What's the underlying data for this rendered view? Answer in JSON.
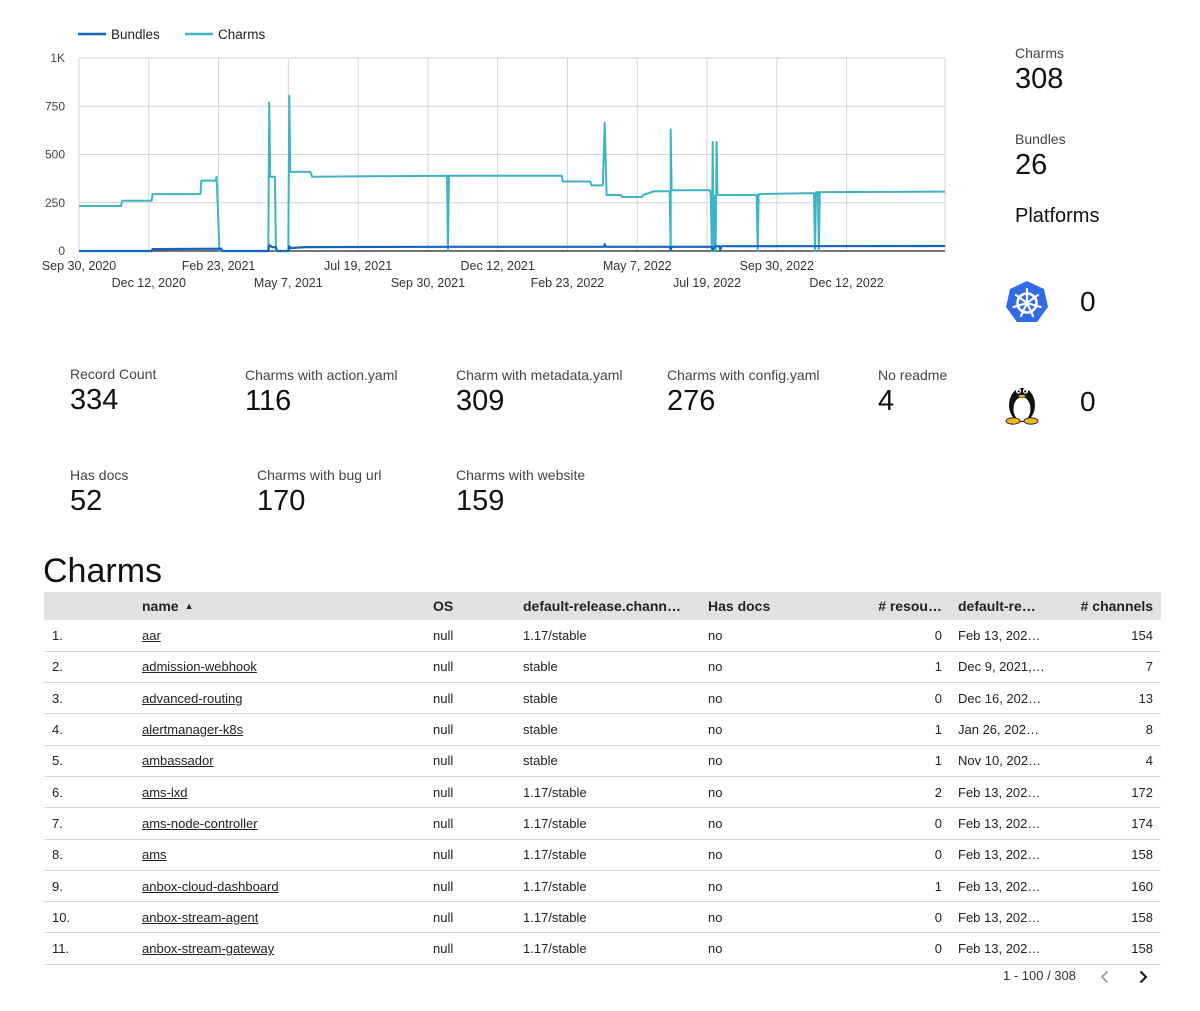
{
  "chart_data": {
    "type": "line",
    "title": "",
    "xlabel": "",
    "ylabel": "",
    "legend_position": "top-left",
    "grid": true,
    "ylim": [
      0,
      1000
    ],
    "xlim": [
      "2020-09-30",
      "2023-03-25"
    ],
    "y_ticks": [
      {
        "value": 0,
        "label": "0"
      },
      {
        "value": 250,
        "label": "250"
      },
      {
        "value": 500,
        "label": "500"
      },
      {
        "value": 750,
        "label": "750"
      },
      {
        "value": 1000,
        "label": "1K"
      }
    ],
    "x_ticks": [
      {
        "date": "2020-09-30",
        "label": "Sep 30, 2020"
      },
      {
        "date": "2020-12-12",
        "label": "Dec 12, 2020"
      },
      {
        "date": "2021-02-23",
        "label": "Feb 23, 2021"
      },
      {
        "date": "2021-05-07",
        "label": "May 7, 2021"
      },
      {
        "date": "2021-07-19",
        "label": "Jul 19, 2021"
      },
      {
        "date": "2021-09-30",
        "label": "Sep 30, 2021"
      },
      {
        "date": "2021-12-12",
        "label": "Dec 12, 2021"
      },
      {
        "date": "2022-02-23",
        "label": "Feb 23, 2022"
      },
      {
        "date": "2022-05-07",
        "label": "May 7, 2022"
      },
      {
        "date": "2022-07-19",
        "label": "Jul 19, 2022"
      },
      {
        "date": "2022-09-30",
        "label": "Sep 30, 2022"
      },
      {
        "date": "2022-12-12",
        "label": "Dec 12, 2022"
      }
    ],
    "series": [
      {
        "name": "Bundles",
        "color": "#1565c0",
        "points": [
          [
            "2020-09-30",
            0
          ],
          [
            "2020-12-15",
            0
          ],
          [
            "2020-12-16",
            10
          ],
          [
            "2021-02-26",
            12
          ],
          [
            "2021-02-27",
            0
          ],
          [
            "2021-04-16",
            0
          ],
          [
            "2021-04-17",
            30
          ],
          [
            "2021-04-20",
            20
          ],
          [
            "2021-04-24",
            20
          ],
          [
            "2021-04-25",
            0
          ],
          [
            "2021-05-07",
            0
          ],
          [
            "2021-05-08",
            25
          ],
          [
            "2021-05-09",
            15
          ],
          [
            "2021-05-24",
            20
          ],
          [
            "2021-10-21",
            22
          ],
          [
            "2022-04-02",
            22
          ],
          [
            "2022-04-03",
            35
          ],
          [
            "2022-04-04",
            22
          ],
          [
            "2022-06-10",
            22
          ],
          [
            "2022-06-11",
            5
          ],
          [
            "2022-06-12",
            22
          ],
          [
            "2022-07-24",
            22
          ],
          [
            "2022-07-25",
            5
          ],
          [
            "2022-07-28",
            25
          ],
          [
            "2022-08-01",
            25
          ],
          [
            "2022-08-02",
            5
          ],
          [
            "2022-08-03",
            25
          ],
          [
            "2023-03-25",
            26
          ]
        ]
      },
      {
        "name": "Charms",
        "color": "#3fb4c6",
        "points": [
          [
            "2020-09-30",
            233
          ],
          [
            "2020-11-13",
            233
          ],
          [
            "2020-11-14",
            260
          ],
          [
            "2020-12-15",
            260
          ],
          [
            "2020-12-16",
            295
          ],
          [
            "2021-02-04",
            295
          ],
          [
            "2021-02-05",
            365
          ],
          [
            "2021-02-20",
            365
          ],
          [
            "2021-02-21",
            385
          ],
          [
            "2021-02-24",
            0
          ],
          [
            "2021-04-16",
            0
          ],
          [
            "2021-04-17",
            770
          ],
          [
            "2021-04-18",
            385
          ],
          [
            "2021-04-23",
            385
          ],
          [
            "2021-04-24",
            0
          ],
          [
            "2021-05-07",
            0
          ],
          [
            "2021-05-08",
            805
          ],
          [
            "2021-05-09",
            410
          ],
          [
            "2021-05-30",
            410
          ],
          [
            "2021-06-01",
            385
          ],
          [
            "2021-10-20",
            390
          ],
          [
            "2021-10-21",
            0
          ],
          [
            "2021-10-22",
            390
          ],
          [
            "2022-02-17",
            390
          ],
          [
            "2022-02-18",
            360
          ],
          [
            "2022-03-19",
            360
          ],
          [
            "2022-03-20",
            340
          ],
          [
            "2022-04-01",
            340
          ],
          [
            "2022-04-03",
            665
          ],
          [
            "2022-04-05",
            290
          ],
          [
            "2022-04-20",
            290
          ],
          [
            "2022-04-21",
            280
          ],
          [
            "2022-05-12",
            280
          ],
          [
            "2022-05-13",
            290
          ],
          [
            "2022-05-25",
            310
          ],
          [
            "2022-06-10",
            310
          ],
          [
            "2022-06-11",
            0
          ],
          [
            "2022-06-11",
            630
          ],
          [
            "2022-06-12",
            315
          ],
          [
            "2022-07-22",
            315
          ],
          [
            "2022-07-23",
            285
          ],
          [
            "2022-07-24",
            0
          ],
          [
            "2022-07-25",
            565
          ],
          [
            "2022-07-26",
            0
          ],
          [
            "2022-07-27",
            285
          ],
          [
            "2022-07-28",
            0
          ],
          [
            "2022-07-29",
            565
          ],
          [
            "2022-07-30",
            290
          ],
          [
            "2022-09-09",
            290
          ],
          [
            "2022-09-10",
            0
          ],
          [
            "2022-09-11",
            295
          ],
          [
            "2022-11-08",
            300
          ],
          [
            "2022-11-09",
            0
          ],
          [
            "2022-11-10",
            305
          ],
          [
            "2022-11-12",
            305
          ],
          [
            "2022-11-13",
            0
          ],
          [
            "2022-11-14",
            305
          ],
          [
            "2023-03-25",
            308
          ]
        ]
      }
    ]
  },
  "summary": {
    "charms_label": "Charms",
    "charms_value": "308",
    "bundles_label": "Bundles",
    "bundles_value": "26",
    "platforms_title": "Platforms",
    "platforms": [
      {
        "icon": "kubernetes-icon",
        "count": "0"
      },
      {
        "icon": "linux-tux-icon",
        "count": "0"
      }
    ]
  },
  "metrics": [
    {
      "label": "Record Count",
      "value": "334"
    },
    {
      "label": "Charms with action.yaml",
      "value": "116"
    },
    {
      "label": "Charm with metadata.yaml",
      "value": "309"
    },
    {
      "label": "Charms with config.yaml",
      "value": "276"
    },
    {
      "label": "No readme",
      "value": "4"
    },
    {
      "label": "Has docs",
      "value": "52"
    },
    {
      "label": "Charms with bug url",
      "value": "170"
    },
    {
      "label": "Charms with website",
      "value": "159"
    }
  ],
  "table": {
    "title": "Charms",
    "sort_indicator": "▲",
    "columns": [
      "",
      "name",
      "OS",
      "default-release.chann…",
      "Has docs",
      "# resou…",
      "default-re…",
      "# channels"
    ],
    "rows": [
      [
        "1.",
        "aar",
        "null",
        "1.17/stable",
        "no",
        "0",
        "Feb 13, 202…",
        "154"
      ],
      [
        "2.",
        "admission-webhook",
        "null",
        "stable",
        "no",
        "1",
        "Dec 9, 2021,…",
        "7"
      ],
      [
        "3.",
        "advanced-routing",
        "null",
        "stable",
        "no",
        "0",
        "Dec 16, 202…",
        "13"
      ],
      [
        "4.",
        "alertmanager-k8s",
        "null",
        "stable",
        "no",
        "1",
        "Jan 26, 202…",
        "8"
      ],
      [
        "5.",
        "ambassador",
        "null",
        "stable",
        "no",
        "1",
        "Nov 10, 202…",
        "4"
      ],
      [
        "6.",
        "ams-lxd",
        "null",
        "1.17/stable",
        "no",
        "2",
        "Feb 13, 202…",
        "172"
      ],
      [
        "7.",
        "ams-node-controller",
        "null",
        "1.17/stable",
        "no",
        "0",
        "Feb 13, 202…",
        "174"
      ],
      [
        "8.",
        "ams",
        "null",
        "1.17/stable",
        "no",
        "0",
        "Feb 13, 202…",
        "158"
      ],
      [
        "9.",
        "anbox-cloud-dashboard",
        "null",
        "1.17/stable",
        "no",
        "1",
        "Feb 13, 202…",
        "160"
      ],
      [
        "10.",
        "anbox-stream-agent",
        "null",
        "1.17/stable",
        "no",
        "0",
        "Feb 13, 202…",
        "158"
      ],
      [
        "11.",
        "anbox-stream-gateway",
        "null",
        "1.17/stable",
        "no",
        "0",
        "Feb 13, 202…",
        "158"
      ]
    ]
  },
  "pagination": {
    "range_text": "1 - 100 / 308",
    "prev_icon": "chevron-left-icon",
    "next_icon": "chevron-right-icon"
  }
}
